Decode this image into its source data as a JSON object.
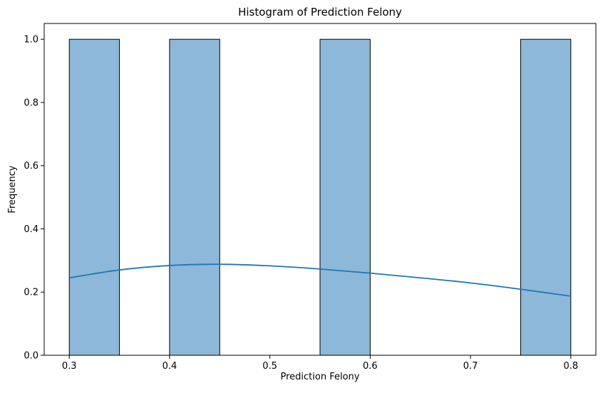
{
  "chart_data": {
    "type": "bar",
    "title": "Histogram of Prediction Felony",
    "xlabel": "Prediction Felony",
    "ylabel": "Frequency",
    "xlim": [
      0.275,
      0.825
    ],
    "ylim": [
      0,
      1.05
    ],
    "xticks": [
      "0.3",
      "0.4",
      "0.5",
      "0.6",
      "0.7",
      "0.8"
    ],
    "yticks": [
      "0.0",
      "0.2",
      "0.4",
      "0.6",
      "0.8",
      "1.0"
    ],
    "bin_width": 0.05,
    "bins": [
      {
        "start": 0.3,
        "end": 0.35,
        "count": 1
      },
      {
        "start": 0.35,
        "end": 0.4,
        "count": 0
      },
      {
        "start": 0.4,
        "end": 0.45,
        "count": 1
      },
      {
        "start": 0.45,
        "end": 0.5,
        "count": 0
      },
      {
        "start": 0.5,
        "end": 0.55,
        "count": 0
      },
      {
        "start": 0.55,
        "end": 0.6,
        "count": 1
      },
      {
        "start": 0.6,
        "end": 0.65,
        "count": 0
      },
      {
        "start": 0.65,
        "end": 0.7,
        "count": 0
      },
      {
        "start": 0.7,
        "end": 0.75,
        "count": 0
      },
      {
        "start": 0.75,
        "end": 0.8,
        "count": 1
      }
    ],
    "kde": {
      "x": [
        0.3,
        0.35,
        0.4,
        0.45,
        0.5,
        0.55,
        0.6,
        0.65,
        0.7,
        0.75,
        0.8
      ],
      "y": [
        0.245,
        0.27,
        0.284,
        0.288,
        0.283,
        0.273,
        0.26,
        0.245,
        0.229,
        0.209,
        0.187
      ]
    },
    "grid": false,
    "colors": {
      "bar_fill": "#8db8d9",
      "bar_edge": "#000000",
      "kde_line": "#1f77b4"
    }
  }
}
